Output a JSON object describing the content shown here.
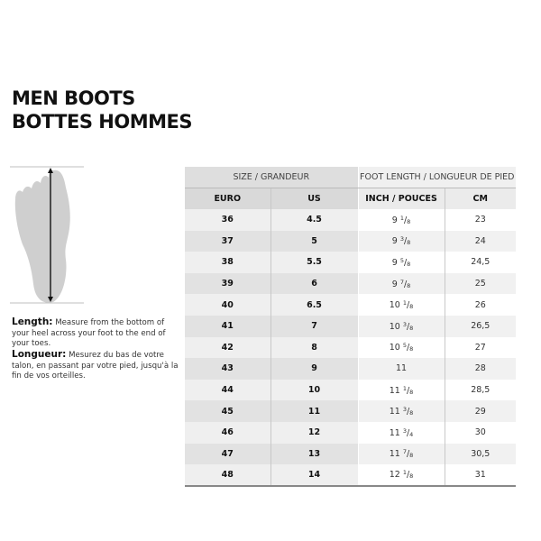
{
  "title": {
    "line1": "MEN BOOTS",
    "line2": "BOTTES HOMMES"
  },
  "description": {
    "length_label": "Length:",
    "length_text": " Measure from the bottom of your heel across your foot to the end of your toes.",
    "longueur_label": "Longueur:",
    "longueur_text": " Mesurez du bas de votre talon, en passant par votre pied, jusqu'à la fin de vos orteilles."
  },
  "table": {
    "group_headers": [
      "SIZE / GRANDEUR",
      "FOOT LENGTH / LONGUEUR DE PIED"
    ],
    "columns": [
      "EURO",
      "US",
      "INCH / POUCES",
      "CM"
    ],
    "rows": [
      {
        "euro": "36",
        "us": "4.5",
        "inch": "9",
        "num": "1",
        "den": "8",
        "cm": "23"
      },
      {
        "euro": "37",
        "us": "5",
        "inch": "9",
        "num": "3",
        "den": "8",
        "cm": "24"
      },
      {
        "euro": "38",
        "us": "5.5",
        "inch": "9",
        "num": "5",
        "den": "8",
        "cm": "24,5"
      },
      {
        "euro": "39",
        "us": "6",
        "inch": "9",
        "num": "7",
        "den": "8",
        "cm": "25"
      },
      {
        "euro": "40",
        "us": "6.5",
        "inch": "10",
        "num": "1",
        "den": "8",
        "cm": "26"
      },
      {
        "euro": "41",
        "us": "7",
        "inch": "10",
        "num": "3",
        "den": "8",
        "cm": "26,5"
      },
      {
        "euro": "42",
        "us": "8",
        "inch": "10",
        "num": "5",
        "den": "8",
        "cm": "27"
      },
      {
        "euro": "43",
        "us": "9",
        "inch": "11",
        "num": "",
        "den": "",
        "cm": "28"
      },
      {
        "euro": "44",
        "us": "10",
        "inch": "11",
        "num": "1",
        "den": "8",
        "cm": "28,5"
      },
      {
        "euro": "45",
        "us": "11",
        "inch": "11",
        "num": "3",
        "den": "8",
        "cm": "29"
      },
      {
        "euro": "46",
        "us": "12",
        "inch": "11",
        "num": "3",
        "den": "4",
        "cm": "30"
      },
      {
        "euro": "47",
        "us": "13",
        "inch": "11",
        "num": "7",
        "den": "8",
        "cm": "30,5"
      },
      {
        "euro": "48",
        "us": "14",
        "inch": "12",
        "num": "1",
        "den": "8",
        "cm": "31"
      }
    ]
  }
}
